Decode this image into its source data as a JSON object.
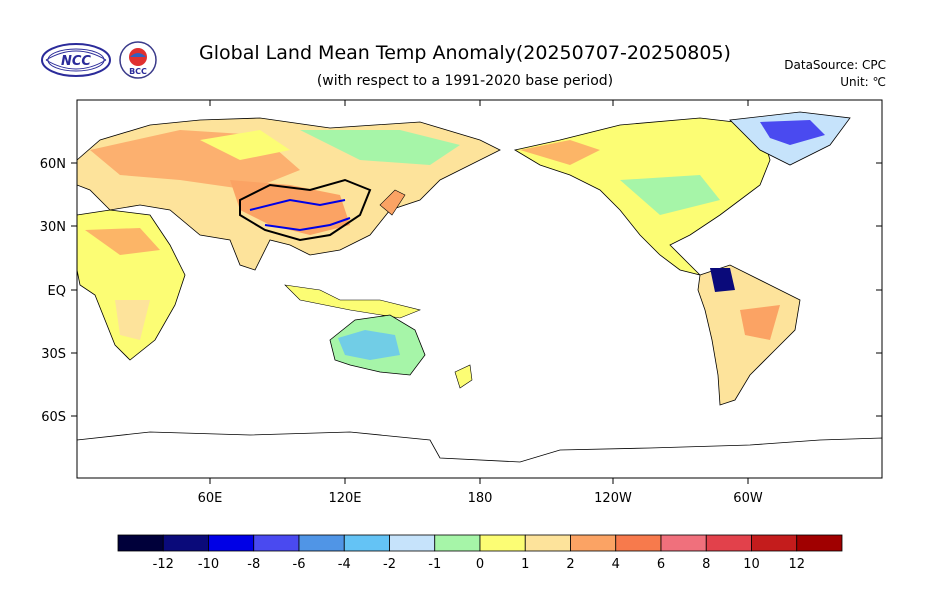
{
  "title": "Global Land Mean Temp Anomaly(20250707-20250805)",
  "subtitle": "(with respect to a 1991-2020 base period)",
  "source": {
    "label": "DataSource:  CPC",
    "unit": "Unit:  ℃"
  },
  "logos": {
    "ncc_text": "NCC",
    "bcc_text": "BCC"
  },
  "axes": {
    "lat_labels": [
      "60N",
      "30N",
      "EQ",
      "30S",
      "60S"
    ],
    "lon_labels": [
      "60E",
      "120E",
      "180",
      "120W",
      "60W"
    ]
  },
  "colorbar": {
    "colors": [
      "#00003a",
      "#0a0a7a",
      "#0000e6",
      "#4a4af0",
      "#5095e6",
      "#64c3f5",
      "#c6e3fb",
      "#a6f5a8",
      "#fcfd74",
      "#fde39b",
      "#fba364",
      "#f77a4c",
      "#f0707c",
      "#e2414b",
      "#c41c1c",
      "#a00000"
    ],
    "labels": [
      "-12",
      "-10",
      "-8",
      "-6",
      "-4",
      "-2",
      "-1",
      "0",
      "1",
      "2",
      "4",
      "6",
      "8",
      "10",
      "12"
    ]
  }
}
